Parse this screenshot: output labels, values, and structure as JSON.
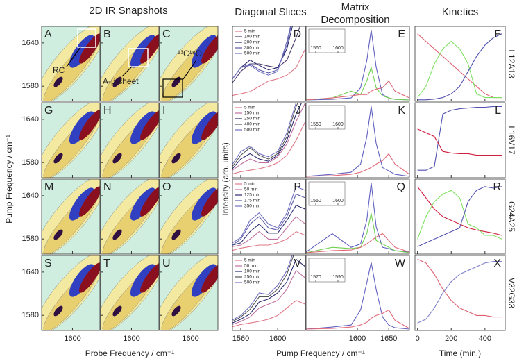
{
  "titles": {
    "snapshots": "2D IR Snapshots",
    "slices": "Diagonal Slices",
    "matrix": [
      "Matrix",
      "Decomposition"
    ],
    "kinetics": "Kinetics"
  },
  "axes": {
    "pump_y": "Pump Frequency / cm⁻¹",
    "probe_x": "Probe Frequency / cm⁻¹",
    "intensity": "Intensity (arb. units)",
    "pump_x": "Pump Frequency / cm⁻¹",
    "time": "Time (min.)"
  },
  "snapshots": {
    "xlim": [
      1555,
      1640
    ],
    "ylim": [
      1559,
      1663
    ],
    "xticks": [
      1600
    ],
    "yticks": [
      1640,
      1580
    ],
    "annotations": [
      "RC",
      "A-β sheet",
      "¹³C¹⁸O"
    ]
  },
  "slices": {
    "xlim": [
      1551,
      1630
    ],
    "ylim": [
      0,
      1
    ],
    "xticks": [
      1560,
      1600
    ],
    "x": [
      1551,
      1560,
      1570,
      1580,
      1590,
      1600,
      1610,
      1620,
      1630
    ]
  },
  "matrix": {
    "xlim": [
      1518,
      1683
    ],
    "ylim": [
      0,
      1.1
    ],
    "xticks": [
      1600,
      1650
    ],
    "x": [
      1518,
      1560,
      1590,
      1605,
      1615,
      1622,
      1630,
      1640,
      1650,
      1660,
      1683
    ]
  },
  "kinetics": {
    "xlim": [
      -15,
      520
    ],
    "ylim": [
      0,
      1
    ],
    "xticks": [
      0,
      200,
      400
    ],
    "x": [
      0,
      50,
      100,
      150,
      200,
      250,
      300,
      350,
      400,
      450,
      500
    ]
  },
  "rows": [
    {
      "label": "L12A13",
      "panels": [
        "A",
        "B",
        "C",
        "D",
        "E",
        "F"
      ],
      "inset_ticks": [
        1560,
        1600
      ],
      "slices": [
        {
          "name": "5 min",
          "color": "#e07888",
          "values": [
            0.08,
            0.1,
            0.13,
            0.2,
            0.27,
            0.3,
            0.35,
            0.45,
            0.7
          ]
        },
        {
          "name": "100 min",
          "color": "#4a3a6a",
          "values": [
            0.25,
            0.4,
            0.5,
            0.5,
            0.47,
            0.45,
            0.55,
            0.85,
            1.2
          ]
        },
        {
          "name": "200 min",
          "color": "#2a2a70",
          "values": [
            0.3,
            0.45,
            0.55,
            0.48,
            0.42,
            0.45,
            0.7,
            1.2,
            1.3
          ]
        },
        {
          "name": "300 min",
          "color": "#5a5aa8",
          "values": [
            0.3,
            0.45,
            0.5,
            0.42,
            0.38,
            0.42,
            0.75,
            1.3,
            1.3
          ]
        },
        {
          "name": "500 min",
          "color": "#7070c0",
          "values": [
            0.3,
            0.45,
            0.48,
            0.4,
            0.35,
            0.4,
            0.8,
            1.3,
            1.3
          ]
        }
      ],
      "matrix": [
        {
          "color": "#6060c0",
          "values": [
            0.02,
            0.03,
            0.05,
            0.2,
            0.6,
            1.05,
            0.5,
            0.1,
            0.05,
            0.03,
            0.02
          ]
        },
        {
          "color": "#70d050",
          "values": [
            0.02,
            0.05,
            0.15,
            0.1,
            0.3,
            0.5,
            0.2,
            0.08,
            0.05,
            0.03,
            0.02
          ]
        },
        {
          "color": "#e06878",
          "values": [
            0.02,
            0.05,
            0.08,
            0.1,
            0.1,
            0.15,
            0.18,
            0.2,
            0.3,
            0.15,
            0.05
          ]
        }
      ],
      "kinetics": [
        {
          "color": "#e06070",
          "values": [
            0.9,
            0.8,
            0.7,
            0.6,
            0.5,
            0.4,
            0.3,
            0.2,
            0.1,
            0.05,
            0.05
          ]
        },
        {
          "color": "#7ee060",
          "values": [
            0.05,
            0.2,
            0.5,
            0.7,
            0.8,
            0.7,
            0.5,
            0.1,
            0.05,
            0.05,
            0.05
          ]
        },
        {
          "color": "#5050b0",
          "values": [
            0.02,
            0.02,
            0.03,
            0.05,
            0.1,
            0.2,
            0.4,
            0.6,
            0.75,
            0.85,
            0.9
          ]
        }
      ]
    },
    {
      "label": "L16V17",
      "panels": [
        "G",
        "H",
        "I",
        "J",
        "K",
        "L"
      ],
      "inset_ticks": [
        1560,
        1600
      ],
      "slices": [
        {
          "name": "5 min",
          "color": "#e07888",
          "values": [
            0.05,
            0.08,
            0.1,
            0.12,
            0.15,
            0.2,
            0.3,
            0.5,
            0.75
          ]
        },
        {
          "name": "150 min",
          "color": "#c070a0",
          "values": [
            0.1,
            0.18,
            0.25,
            0.2,
            0.2,
            0.28,
            0.45,
            0.75,
            1.0
          ]
        },
        {
          "name": "250 min",
          "color": "#2a2a70",
          "values": [
            0.12,
            0.25,
            0.32,
            0.25,
            0.22,
            0.3,
            0.5,
            0.85,
            1.1
          ]
        },
        {
          "name": "400 min",
          "color": "#555555",
          "values": [
            0.15,
            0.3,
            0.4,
            0.3,
            0.25,
            0.32,
            0.55,
            0.95,
            1.2
          ]
        },
        {
          "name": "500 min",
          "color": "#7070c0",
          "values": [
            0.18,
            0.35,
            0.42,
            0.32,
            0.28,
            0.35,
            0.6,
            1.0,
            1.2
          ]
        }
      ],
      "matrix": [
        {
          "color": "#6060c0",
          "values": [
            0.02,
            0.05,
            0.08,
            0.2,
            0.6,
            1.05,
            0.5,
            0.15,
            0.1,
            0.05,
            0.02
          ]
        },
        {
          "color": "#e06878",
          "values": [
            0.02,
            0.03,
            0.05,
            0.08,
            0.12,
            0.15,
            0.2,
            0.25,
            0.35,
            0.2,
            0.05
          ]
        }
      ],
      "kinetics": [
        {
          "color": "#5050b0",
          "values": [
            0.1,
            0.1,
            0.15,
            0.85,
            0.9,
            0.92,
            0.93,
            0.94,
            0.94,
            0.95,
            0.95
          ]
        },
        {
          "color": "#d02040",
          "values": [
            0.65,
            0.6,
            0.55,
            0.35,
            0.33,
            0.32,
            0.32,
            0.3,
            0.3,
            0.3,
            0.3
          ]
        }
      ]
    },
    {
      "label": "G24A25",
      "panels": [
        "M",
        "N",
        "O",
        "P",
        "Q",
        "R"
      ],
      "inset_ticks": [
        1560,
        1600
      ],
      "slices": [
        {
          "name": "5 min",
          "color": "#e07888",
          "values": [
            0.05,
            0.08,
            0.1,
            0.12,
            0.12,
            0.15,
            0.2,
            0.3,
            0.25
          ]
        },
        {
          "name": "50 min",
          "color": "#c070a0",
          "values": [
            0.1,
            0.12,
            0.2,
            0.3,
            0.2,
            0.2,
            0.35,
            0.5,
            0.4
          ]
        },
        {
          "name": "125 min",
          "color": "#2a2a70",
          "values": [
            0.12,
            0.15,
            0.3,
            0.4,
            0.28,
            0.28,
            0.45,
            0.65,
            0.6
          ]
        },
        {
          "name": "175 min",
          "color": "#5a5aa8",
          "values": [
            0.12,
            0.2,
            0.4,
            0.5,
            0.35,
            0.32,
            0.5,
            0.8,
            0.75
          ]
        },
        {
          "name": "350 min",
          "color": "#7070c0",
          "values": [
            0.15,
            0.22,
            0.45,
            0.55,
            0.4,
            0.35,
            0.55,
            0.9,
            0.85
          ]
        }
      ],
      "matrix": [
        {
          "color": "#6060c0",
          "values": [
            0.03,
            0.3,
            0.1,
            0.15,
            0.5,
            1.05,
            0.4,
            0.1,
            0.08,
            0.05,
            0.03
          ]
        },
        {
          "color": "#70d050",
          "values": [
            0.02,
            0.1,
            0.08,
            0.1,
            0.3,
            0.6,
            0.2,
            0.15,
            0.1,
            0.05,
            0.02
          ]
        },
        {
          "color": "#e06878",
          "values": [
            0.02,
            0.05,
            0.06,
            0.1,
            0.15,
            0.2,
            0.25,
            0.3,
            0.2,
            0.1,
            0.03
          ]
        }
      ],
      "kinetics": [
        {
          "color": "#d02040",
          "values": [
            0.9,
            0.75,
            0.6,
            0.5,
            0.45,
            0.4,
            0.35,
            0.32,
            0.3,
            0.28,
            0.25
          ]
        },
        {
          "color": "#7ee060",
          "values": [
            0.2,
            0.5,
            0.7,
            0.8,
            0.85,
            0.75,
            0.4,
            0.35,
            0.25,
            0.25,
            0.2
          ]
        },
        {
          "color": "#5050b0",
          "values": [
            0.1,
            0.15,
            0.2,
            0.25,
            0.3,
            0.35,
            0.7,
            0.85,
            0.9,
            0.88,
            0.9
          ]
        }
      ]
    },
    {
      "label": "V32G33",
      "panels": [
        "S",
        "T",
        "U",
        "V",
        "W",
        "X"
      ],
      "inset_ticks": [
        1570,
        1590
      ],
      "slices": [
        {
          "name": "5 min",
          "color": "#e07888",
          "values": [
            0.05,
            0.08,
            0.1,
            0.12,
            0.15,
            0.2,
            0.3,
            0.4,
            0.35
          ]
        },
        {
          "name": "50 min",
          "color": "#c070a0",
          "values": [
            0.08,
            0.12,
            0.18,
            0.3,
            0.35,
            0.4,
            0.55,
            0.8,
            0.7
          ]
        },
        {
          "name": "100 min",
          "color": "#2a2a70",
          "values": [
            0.1,
            0.15,
            0.22,
            0.38,
            0.42,
            0.5,
            0.65,
            0.95,
            0.85
          ]
        },
        {
          "name": "250 min",
          "color": "#555555",
          "values": [
            0.12,
            0.18,
            0.28,
            0.45,
            0.45,
            0.55,
            0.75,
            1.1,
            1.0
          ]
        },
        {
          "name": "500 min",
          "color": "#7070c0",
          "values": [
            0.14,
            0.2,
            0.32,
            0.5,
            0.48,
            0.6,
            0.8,
            1.15,
            1.1
          ]
        }
      ],
      "matrix": [
        {
          "color": "#6060c0",
          "values": [
            0.02,
            0.05,
            0.08,
            0.3,
            0.7,
            1.0,
            0.6,
            0.2,
            0.08,
            0.04,
            0.02
          ]
        },
        {
          "color": "#e06878",
          "values": [
            0.02,
            0.03,
            0.05,
            0.08,
            0.12,
            0.18,
            0.22,
            0.25,
            0.3,
            0.15,
            0.03
          ]
        }
      ],
      "kinetics": [
        {
          "color": "#e06070",
          "values": [
            0.95,
            0.9,
            0.75,
            0.55,
            0.4,
            0.3,
            0.25,
            0.2,
            0.2,
            0.18,
            0.18
          ]
        },
        {
          "color": "#8080c8",
          "values": [
            0.1,
            0.15,
            0.3,
            0.5,
            0.65,
            0.75,
            0.8,
            0.85,
            0.9,
            0.92,
            0.92
          ]
        }
      ]
    }
  ]
}
